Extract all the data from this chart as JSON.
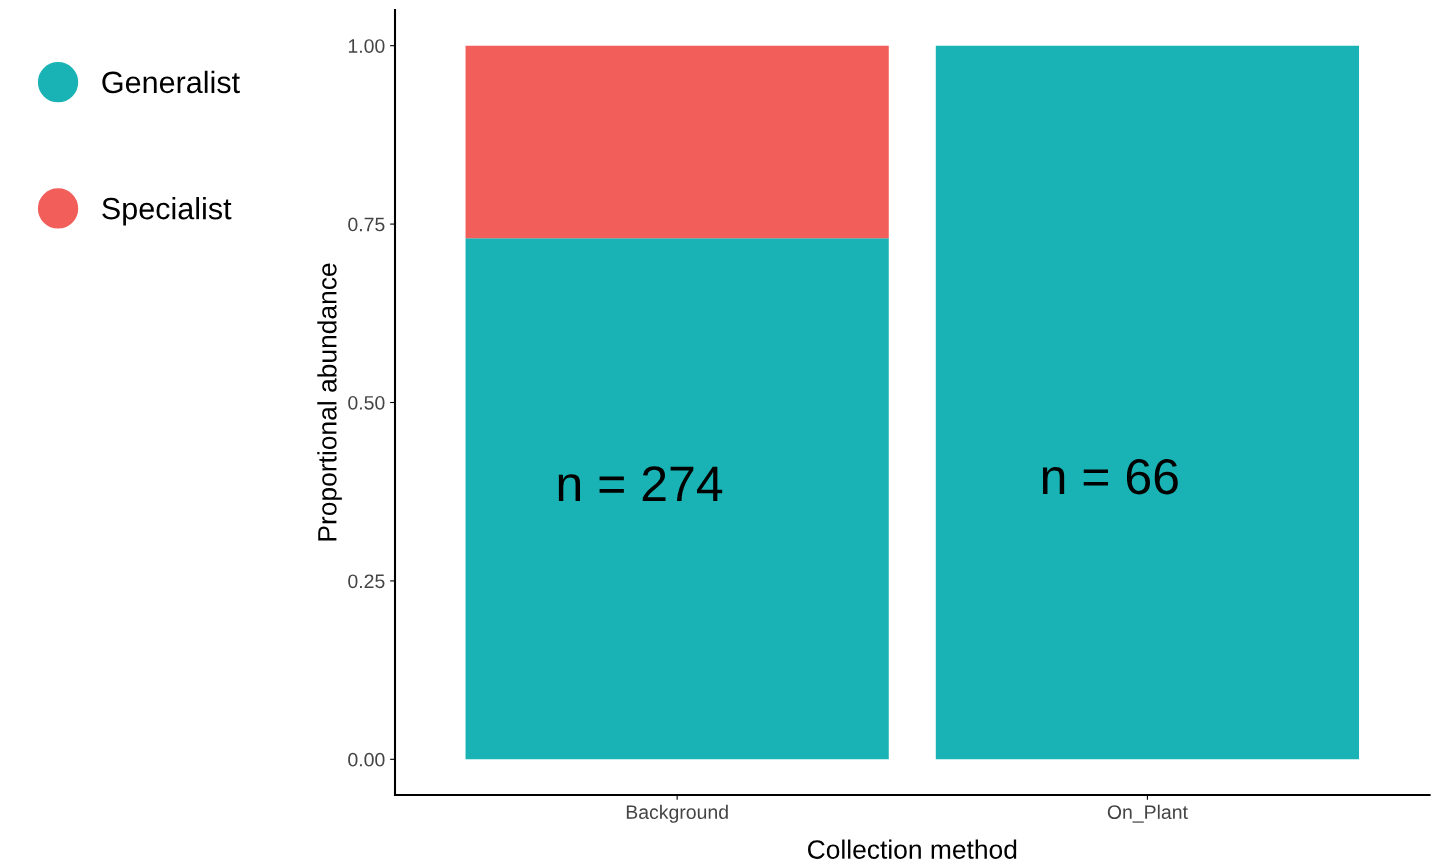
{
  "chart_data": {
    "type": "bar",
    "stacked": true,
    "xlabel": "Collection method",
    "ylabel": "Proportional abundance",
    "categories": [
      "Background",
      "On_Plant"
    ],
    "series": [
      {
        "name": "Generalist",
        "color": "#1ab3b5",
        "values": [
          0.73,
          1.0
        ]
      },
      {
        "name": "Specialist",
        "color": "#f25e5a",
        "values": [
          0.27,
          0
        ]
      }
    ],
    "ylim": [
      -0.05,
      1.05
    ],
    "yticks": [
      {
        "value": 0,
        "label": "0.00"
      },
      {
        "value": 0.25,
        "label": "0.25"
      },
      {
        "value": 0.5,
        "label": "0.50"
      },
      {
        "value": 0.75,
        "label": "0.75"
      },
      {
        "value": 1,
        "label": "1.00"
      }
    ],
    "grid": false,
    "legend": "left",
    "annotations": [
      "n = 274",
      "n = 66"
    ]
  }
}
